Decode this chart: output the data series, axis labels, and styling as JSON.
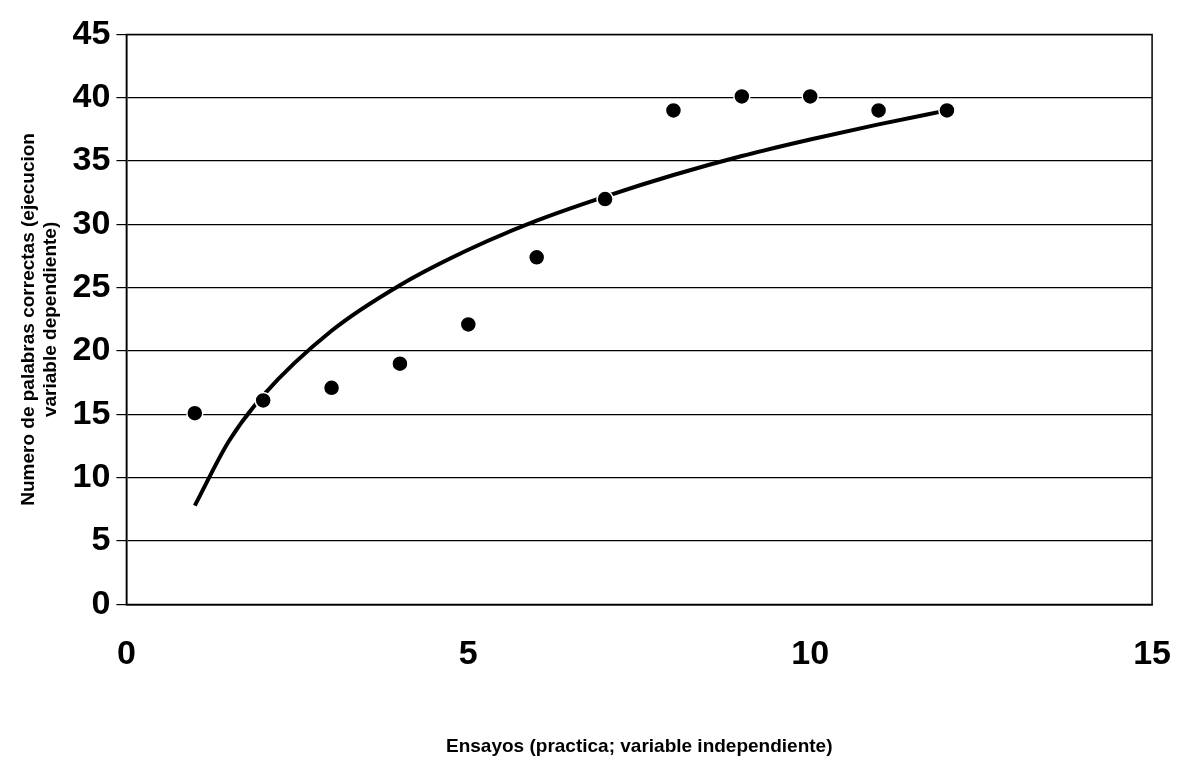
{
  "chart_data": {
    "type": "scatter",
    "xlabel": "Ensayos (practica; variable independiente)",
    "ylabel": "Numero de palabras correctas (ejecucion variable dependiente)",
    "x": [
      1,
      2,
      3,
      4,
      5,
      6,
      7,
      8,
      9,
      10,
      11,
      12
    ],
    "series": [
      {
        "color": "#000000",
        "values": [
          15.1,
          16.1,
          17.1,
          19,
          22.1,
          27.4,
          32,
          39,
          40.1,
          40.1,
          39,
          39
        ]
      },
      {
        "type": "line",
        "marker": "none",
        "color": "#000000",
        "x": [
          1,
          1.5,
          2,
          3,
          4,
          5,
          6,
          7,
          8,
          9,
          10,
          11,
          12
        ],
        "values": [
          7.8,
          12.9,
          16.5,
          21.6,
          25.2,
          28,
          30.3,
          32.2,
          33.9,
          35.4,
          36.7,
          37.9,
          39
        ]
      }
    ],
    "xlim": [
      0,
      15
    ],
    "xticks": [
      0,
      5,
      10,
      15
    ],
    "ylim": [
      0,
      45
    ],
    "yticks": [
      0,
      5,
      10,
      15,
      20,
      25,
      30,
      35,
      40,
      45
    ],
    "grid": "y",
    "marker": "circle",
    "line_style": "solid",
    "legend": false
  }
}
